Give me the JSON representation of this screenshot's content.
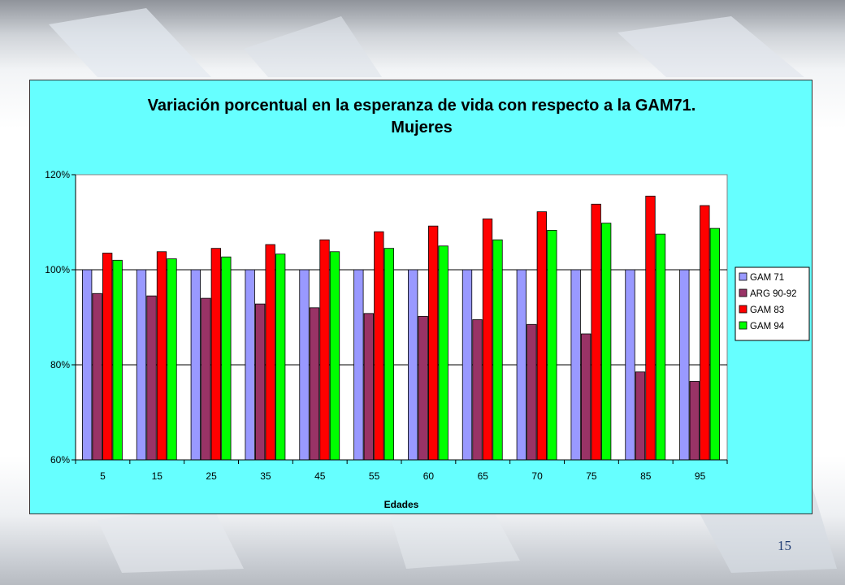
{
  "slide": {
    "page_number": "15"
  },
  "chart_data": {
    "type": "bar",
    "title": "Variación porcentual en la esperanza de vida con respecto a la GAM71.",
    "subtitle": "Mujeres",
    "xlabel": "Edades",
    "ylabel": "",
    "categories": [
      "5",
      "15",
      "25",
      "35",
      "45",
      "55",
      "60",
      "65",
      "70",
      "75",
      "85",
      "95"
    ],
    "ylim": [
      0.6,
      1.2
    ],
    "yticks": [
      {
        "value": 0.6,
        "label": "60%"
      },
      {
        "value": 0.8,
        "label": "80%"
      },
      {
        "value": 1.0,
        "label": "100%"
      },
      {
        "value": 1.2,
        "label": "120%"
      }
    ],
    "grid": "horizontal",
    "legend_position": "right",
    "series": [
      {
        "name": "GAM 71",
        "color": "#9999ff",
        "values": [
          1.0,
          1.0,
          1.0,
          1.0,
          1.0,
          1.0,
          1.0,
          1.0,
          1.0,
          1.0,
          1.0,
          1.0
        ]
      },
      {
        "name": "ARG 90-92",
        "color": "#993366",
        "values": [
          0.95,
          0.945,
          0.94,
          0.928,
          0.92,
          0.908,
          0.902,
          0.895,
          0.885,
          0.865,
          0.785,
          0.765
        ]
      },
      {
        "name": "GAM 83",
        "color": "#ff0000",
        "values": [
          1.035,
          1.038,
          1.045,
          1.053,
          1.063,
          1.08,
          1.092,
          1.107,
          1.122,
          1.138,
          1.155,
          1.135
        ]
      },
      {
        "name": "GAM 94",
        "color": "#00ff00",
        "values": [
          1.02,
          1.023,
          1.027,
          1.033,
          1.038,
          1.045,
          1.05,
          1.063,
          1.083,
          1.098,
          1.075,
          1.087
        ]
      }
    ]
  }
}
